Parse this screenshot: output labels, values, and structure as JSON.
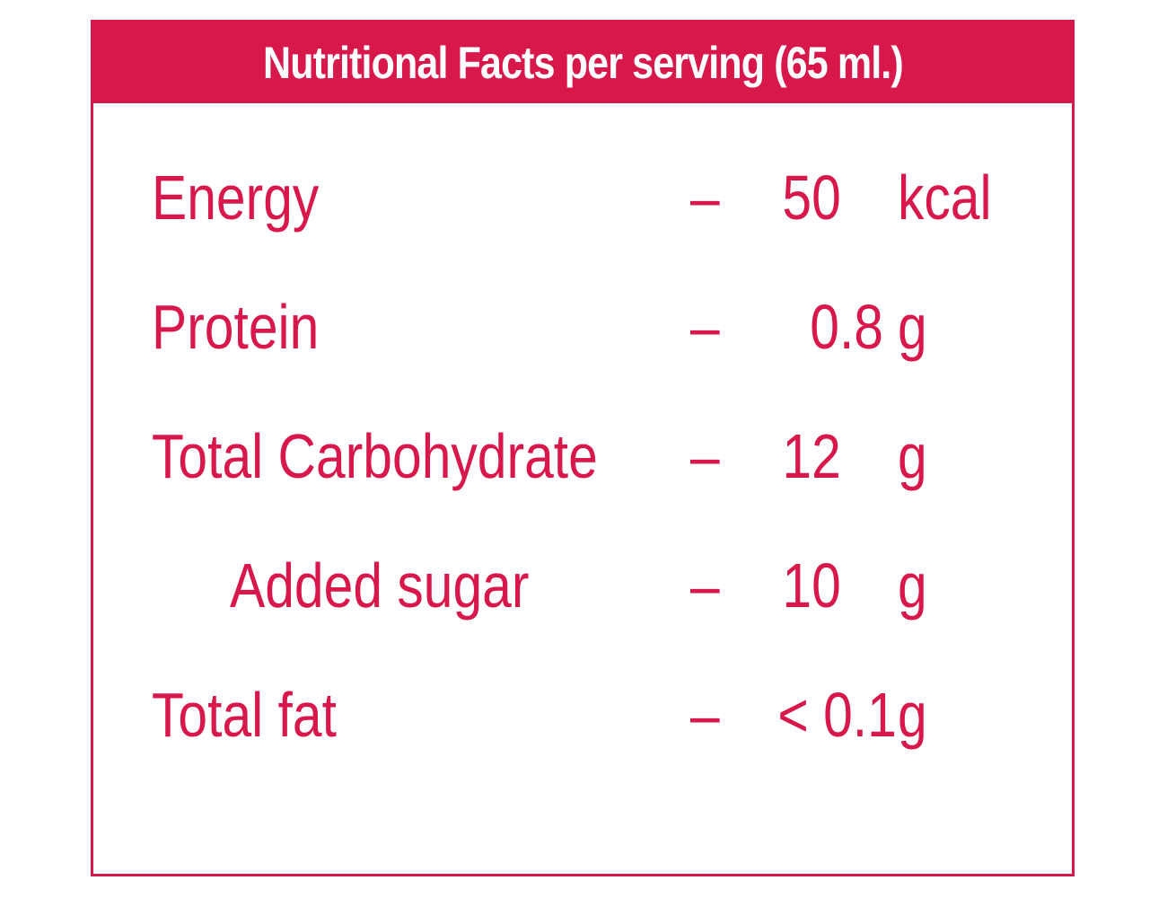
{
  "header": {
    "title": "Nutritional Facts per serving (65 ml.)"
  },
  "rows": [
    {
      "label": "Energy",
      "separator": "–",
      "value": "50",
      "unit": "kcal"
    },
    {
      "label": "Protein",
      "separator": "–",
      "value": "0.8",
      "unit": "g"
    },
    {
      "label": "Total Carbohydrate",
      "separator": "–",
      "value": "12",
      "unit": "g"
    },
    {
      "label": "Added sugar",
      "separator": "–",
      "value": "10",
      "unit": "g"
    },
    {
      "label": "Total fat",
      "separator": "–",
      "value": "< 0.1",
      "unit": "g"
    }
  ],
  "colors": {
    "accent": "#d8174b",
    "background": "#ffffff"
  }
}
